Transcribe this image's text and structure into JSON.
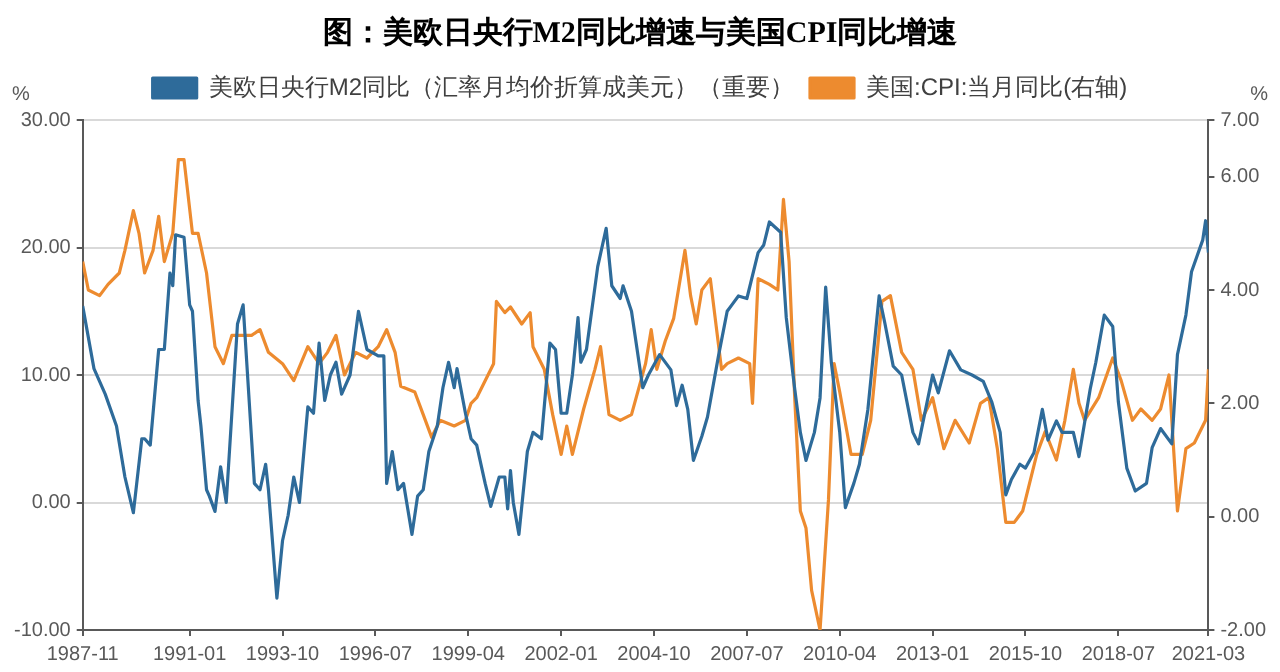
{
  "chart_data": {
    "type": "line",
    "title": "图：美欧日央行M2同比增速与美国CPI同比增速",
    "ylabel": "%",
    "y2label": "%",
    "xlim": [
      "1987-11",
      "2021-03"
    ],
    "xticks": [
      "1987-11",
      "1991-01",
      "1993-10",
      "1996-07",
      "1999-04",
      "2002-01",
      "2004-10",
      "2007-07",
      "2010-04",
      "2013-01",
      "2015-10",
      "2018-07",
      "2021-03"
    ],
    "ylim": [
      -10,
      30
    ],
    "yticks": [
      {
        "value": -10,
        "label": "-10.00"
      },
      {
        "value": 0,
        "label": "0.00"
      },
      {
        "value": 10,
        "label": "10.00"
      },
      {
        "value": 20,
        "label": "20.00"
      },
      {
        "value": 30,
        "label": "30.00"
      }
    ],
    "y2lim": [
      -2,
      7
    ],
    "y2ticks": [
      {
        "value": -2,
        "label": "-2.00"
      },
      {
        "value": 0,
        "label": "0.00"
      },
      {
        "value": 2,
        "label": "2.00"
      },
      {
        "value": 4,
        "label": "4.00"
      },
      {
        "value": 6,
        "label": "6.00"
      },
      {
        "value": 7,
        "label": "7.00"
      }
    ],
    "grid": "y",
    "legend": "top",
    "marker": "none",
    "line_style": "solid",
    "series": [
      {
        "name": "美欧日央行M2同比（汇率月均价折算成美元）（重要）",
        "color": "#2e6b9a",
        "axis": "y",
        "x": [
          "1987-11",
          "1988-03",
          "1988-07",
          "1988-11",
          "1989-02",
          "1989-05",
          "1989-08",
          "1989-09",
          "1989-11",
          "1990-02",
          "1990-04",
          "1990-06",
          "1990-07",
          "1990-08",
          "1990-11",
          "1991-01",
          "1991-02",
          "1991-04",
          "1991-05",
          "1991-07",
          "1991-08",
          "1991-10",
          "1991-12",
          "1992-02",
          "1992-04",
          "1992-06",
          "1992-08",
          "1992-09",
          "1992-11",
          "1992-12",
          "1993-02",
          "1993-04",
          "1993-05",
          "1993-08",
          "1993-10",
          "1993-12",
          "1994-02",
          "1994-04",
          "1994-07",
          "1994-09",
          "1994-11",
          "1995-01",
          "1995-03",
          "1995-05",
          "1995-07",
          "1995-10",
          "1996-01",
          "1996-04",
          "1996-08",
          "1996-10",
          "1996-11",
          "1997-01",
          "1997-03",
          "1997-05",
          "1997-08",
          "1997-10",
          "1997-12",
          "1998-02",
          "1998-05",
          "1998-07",
          "1998-09",
          "1998-11",
          "1998-12",
          "1999-03",
          "1999-05",
          "1999-07",
          "1999-10",
          "1999-12",
          "2000-03",
          "2000-05",
          "2000-06",
          "2000-07",
          "2000-08",
          "2000-10",
          "2001-01",
          "2001-03",
          "2001-06",
          "2001-09",
          "2001-11",
          "2002-01",
          "2002-03",
          "2002-05",
          "2002-07",
          "2002-08",
          "2002-10",
          "2003-02",
          "2003-05",
          "2003-07",
          "2003-10",
          "2003-11",
          "2004-02",
          "2004-04",
          "2004-06",
          "2004-08",
          "2004-12",
          "2005-04",
          "2005-06",
          "2005-08",
          "2005-10",
          "2005-12",
          "2006-03",
          "2006-05",
          "2006-09",
          "2006-12",
          "2007-02",
          "2007-04",
          "2007-07",
          "2007-11",
          "2008-01",
          "2008-03",
          "2008-07",
          "2008-09",
          "2008-12",
          "2009-02",
          "2009-04",
          "2009-07",
          "2009-09",
          "2009-11",
          "2010-01",
          "2010-04",
          "2010-06",
          "2010-09",
          "2010-11",
          "2011-02",
          "2011-06",
          "2011-08",
          "2011-11",
          "2012-02",
          "2012-06",
          "2012-08",
          "2013-01",
          "2013-03",
          "2013-07",
          "2013-11",
          "2014-03",
          "2014-07",
          "2014-10",
          "2015-01",
          "2015-03",
          "2015-05",
          "2015-08",
          "2015-10",
          "2016-01",
          "2016-04",
          "2016-06",
          "2016-09",
          "2016-11",
          "2017-03",
          "2017-05",
          "2017-09",
          "2017-11",
          "2018-02",
          "2018-05",
          "2018-07",
          "2018-10",
          "2019-01",
          "2019-05",
          "2019-07",
          "2019-10",
          "2020-02",
          "2020-04",
          "2020-07",
          "2020-09",
          "2021-01",
          "2021-02",
          "2021-03"
        ],
        "values": [
          15.4,
          10.5,
          8.5,
          6,
          2,
          -0.8,
          5,
          5,
          4.5,
          12,
          12,
          18,
          17,
          21,
          20.8,
          15.5,
          15,
          8,
          6,
          1,
          0.5,
          -0.7,
          2.8,
          0,
          7,
          14,
          15.5,
          12,
          5,
          1.5,
          1,
          3,
          1,
          -7.5,
          -3,
          -1,
          2,
          0,
          7.5,
          7,
          12.5,
          8,
          10,
          11,
          8.5,
          10,
          15,
          12,
          11.5,
          11.5,
          1.5,
          4,
          1,
          1.5,
          -2.5,
          0.5,
          1,
          4,
          6,
          9,
          11,
          9,
          10.5,
          7,
          5,
          4.5,
          1.5,
          -0.3,
          2,
          2,
          -0.5,
          2.5,
          0,
          -2.5,
          4,
          5.5,
          5,
          12.5,
          12,
          7,
          7,
          10,
          14.5,
          11,
          12,
          18.5,
          21.5,
          17,
          16,
          17,
          15,
          12,
          9,
          10,
          11.6,
          10.4,
          7.6,
          9.2,
          7.3,
          3.3,
          5.2,
          6.7,
          11.6,
          15,
          15.6,
          16.2,
          16,
          19.6,
          20.2,
          22,
          21.2,
          14.5,
          8.9,
          5.5,
          3.3,
          5.5,
          8.2,
          16.9,
          11,
          5.5,
          -0.4,
          1.5,
          3,
          7.3,
          16.2,
          14.1,
          10.7,
          10,
          5.5,
          4.6,
          10,
          8.6,
          11.9,
          10.4,
          10,
          9.5,
          7.9,
          5.5,
          0.6,
          1.8,
          3,
          2.7,
          3.9,
          7.3,
          4.9,
          6.4,
          5.5,
          5.5,
          3.6,
          8.9,
          11,
          14.7,
          13.8,
          7.9,
          2.7,
          0.9,
          1.5,
          4.3,
          5.8,
          4.6,
          11.6,
          14.7,
          18.1,
          20.6,
          22.1,
          19.6
        ]
      },
      {
        "name": "美国:CPI:当月同比(右轴)",
        "color": "#ed8b2f",
        "axis": "y2",
        "x": [
          "1987-11",
          "1988-01",
          "1988-05",
          "1988-08",
          "1988-12",
          "1989-02",
          "1989-05",
          "1989-07",
          "1989-09",
          "1989-12",
          "1990-02",
          "1990-04",
          "1990-07",
          "1990-09",
          "1990-11",
          "1991-02",
          "1991-04",
          "1991-07",
          "1991-10",
          "1992-01",
          "1992-04",
          "1992-08",
          "1992-11",
          "1993-02",
          "1993-05",
          "1993-10",
          "1994-02",
          "1994-07",
          "1994-11",
          "1995-02",
          "1995-05",
          "1995-08",
          "1995-12",
          "1996-04",
          "1996-08",
          "1996-11",
          "1997-02",
          "1997-04",
          "1997-09",
          "1997-12",
          "1998-03",
          "1998-06",
          "1998-11",
          "1999-03",
          "1999-05",
          "1999-07",
          "2000-01",
          "2000-02",
          "2000-05",
          "2000-07",
          "2000-11",
          "2001-02",
          "2001-03",
          "2001-07",
          "2001-10",
          "2002-01",
          "2002-03",
          "2002-05",
          "2002-09",
          "2003-01",
          "2003-03",
          "2003-06",
          "2003-10",
          "2004-02",
          "2004-07",
          "2004-09",
          "2004-11",
          "2005-02",
          "2005-05",
          "2005-09",
          "2005-11",
          "2006-01",
          "2006-03",
          "2006-06",
          "2006-10",
          "2006-12",
          "2007-04",
          "2007-08",
          "2007-09",
          "2007-11",
          "2008-03",
          "2008-06",
          "2008-08",
          "2008-10",
          "2008-12",
          "2009-02",
          "2009-04",
          "2009-06",
          "2009-09",
          "2009-12",
          "2010-02",
          "2010-04",
          "2010-08",
          "2010-12",
          "2011-03",
          "2011-07",
          "2011-10",
          "2012-02",
          "2012-06",
          "2012-09",
          "2013-01",
          "2013-05",
          "2013-09",
          "2014-02",
          "2014-06",
          "2014-09",
          "2014-12",
          "2015-03",
          "2015-06",
          "2015-09",
          "2016-02",
          "2016-05",
          "2016-09",
          "2016-12",
          "2017-03",
          "2017-05",
          "2017-07",
          "2017-12",
          "2018-05",
          "2018-08",
          "2018-12",
          "2019-03",
          "2019-07",
          "2019-10",
          "2020-01",
          "2020-04",
          "2020-07",
          "2020-10",
          "2021-02",
          "2021-03"
        ],
        "values": [
          4.5,
          4,
          3.9,
          4.1,
          4.3,
          4.7,
          5.4,
          5,
          4.3,
          4.7,
          5.3,
          4.5,
          5,
          6.3,
          6.3,
          5,
          5,
          4.3,
          3,
          2.7,
          3.2,
          3.2,
          3.2,
          3.3,
          2.9,
          2.7,
          2.4,
          3,
          2.7,
          2.9,
          3.2,
          2.5,
          2.9,
          2.8,
          3,
          3.3,
          2.9,
          2.3,
          2.2,
          1.8,
          1.4,
          1.7,
          1.6,
          1.7,
          2,
          2.1,
          2.7,
          3.8,
          3.6,
          3.7,
          3.4,
          3.6,
          3,
          2.6,
          1.8,
          1.1,
          1.6,
          1.1,
          1.9,
          2.6,
          3,
          1.8,
          1.7,
          1.8,
          2.7,
          3.3,
          2.6,
          3.1,
          3.5,
          4.7,
          3.9,
          3.4,
          4,
          4.2,
          2.6,
          2.7,
          2.8,
          2.7,
          2,
          4.2,
          4.1,
          4,
          5.6,
          4.5,
          2.1,
          0.1,
          -0.2,
          -1.3,
          -2,
          0.3,
          2.7,
          2.2,
          1.1,
          1.1,
          1.7,
          3.8,
          3.9,
          2.9,
          2.6,
          1.7,
          2.1,
          1.2,
          1.7,
          1.3,
          2,
          2.1,
          1.2,
          -0.1,
          -0.1,
          0.1,
          1.1,
          1.5,
          1,
          1.7,
          2.6,
          2,
          1.7,
          2.1,
          2.8,
          2.4,
          1.7,
          1.9,
          1.7,
          1.9,
          2.5,
          0.1,
          1.2,
          1.3,
          1.7,
          2.6
        ]
      }
    ]
  }
}
